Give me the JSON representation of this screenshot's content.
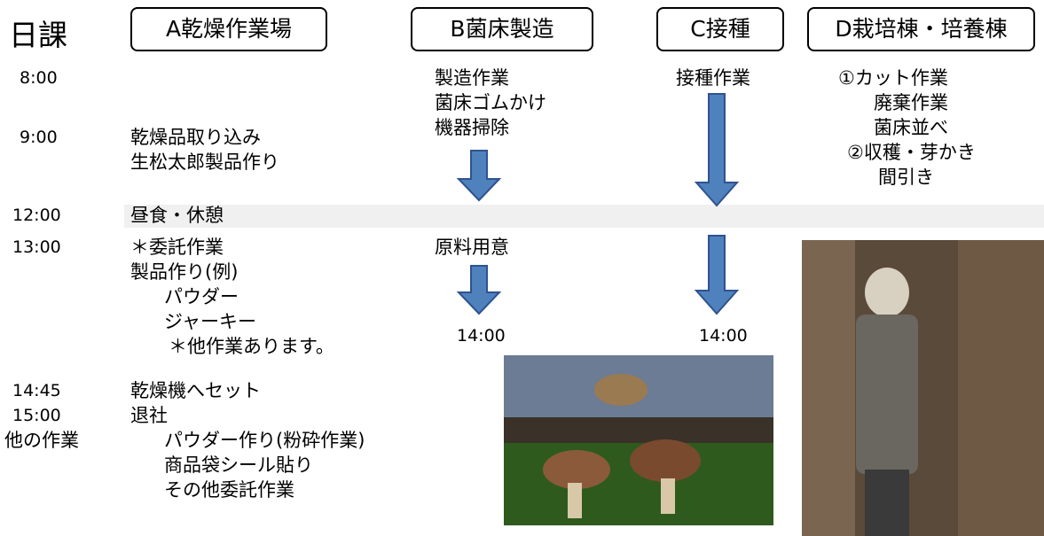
{
  "header": {
    "title": "日課",
    "columns": [
      "A乾燥作業場",
      "B菌床製造",
      "C接種",
      "D栽培棟・培養棟"
    ]
  },
  "times": [
    "8:00",
    "9:00",
    "12:00",
    "13:00",
    "14:45",
    "15:00",
    "他の作業"
  ],
  "column_a": [
    "乾燥品取り込み",
    "生松太郎製品作り",
    "昼食・休憩",
    "＊委託作業",
    "製品作り(例)",
    "パウダー",
    "ジャーキー",
    "＊他作業あります。",
    "乾燥機へセット",
    "退社",
    "パウダー作り(粉砕作業)",
    "商品袋シール貼り",
    "その他委託作業"
  ],
  "column_b": [
    "製造作業",
    "菌床ゴムかけ",
    "機器掃除",
    "原料用意",
    "14:00"
  ],
  "column_c": [
    "接種作業",
    "14:00"
  ],
  "column_d": [
    "①カット作業",
    "廃棄作業",
    "菌床並べ",
    "②収穫・芽かき",
    "間引き"
  ]
}
